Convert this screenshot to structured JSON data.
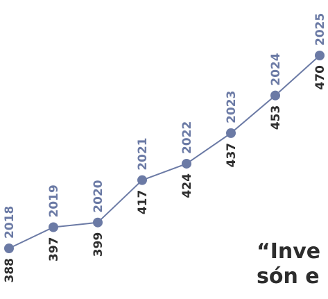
{
  "chart_data": {
    "type": "line",
    "x": [
      "2018",
      "2019",
      "2020",
      "2021",
      "2022",
      "2023",
      "2024",
      "2025"
    ],
    "values": [
      388,
      397,
      399,
      417,
      424,
      437,
      453,
      470
    ],
    "ylim": [
      380,
      475
    ],
    "grid": false,
    "legend": "none"
  },
  "quote": {
    "line1": "“Inve",
    "line2": "són e"
  },
  "colors": {
    "line": "#6b7aa5",
    "marker": "#6b7aa5",
    "year_text": "#6b7aa5",
    "value_text": "#2d2d2d",
    "quote_text": "#2d2d2d"
  }
}
